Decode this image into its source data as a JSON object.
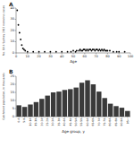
{
  "chart_data": [
    {
      "type": "scatter",
      "title": "A",
      "x": [
        1,
        2,
        3,
        4,
        5,
        6,
        7,
        8,
        10,
        15,
        20,
        25,
        30,
        35,
        40,
        45,
        48,
        50,
        52,
        53,
        55,
        56,
        57,
        58,
        59,
        60,
        61,
        62,
        63,
        64,
        65,
        66,
        67,
        68,
        69,
        70,
        71,
        72,
        73,
        74,
        75,
        76,
        77,
        78,
        79,
        80,
        82,
        85,
        88,
        90,
        95
      ],
      "values": [
        38,
        25,
        18,
        12,
        7,
        4,
        3,
        2,
        1,
        1,
        1,
        1,
        1,
        1,
        1,
        1,
        1,
        2,
        1,
        2,
        2,
        3,
        2,
        2,
        3,
        3,
        2,
        3,
        2,
        3,
        3,
        2,
        3,
        3,
        2,
        3,
        3,
        2,
        3,
        2,
        3,
        2,
        3,
        2,
        2,
        2,
        2,
        1,
        1,
        1,
        1
      ],
      "color": "black",
      "xlabel": "Age",
      "ylabel": "No. GII.4 Sydney 2012 norovirus cases",
      "xlim": [
        0,
        100
      ],
      "ylim": [
        0,
        40
      ],
      "xticks": [
        0,
        10,
        20,
        30,
        40,
        50,
        60,
        70,
        80,
        90,
        100
      ],
      "yticks": [
        0,
        10,
        20,
        30,
        40
      ]
    },
    {
      "type": "bar",
      "title": "B",
      "categories": [
        "0-4",
        "5-9",
        "10-14",
        "15-19",
        "20-24",
        "25-29",
        "30-34",
        "35-39",
        "40-44",
        "45-49",
        "50-54",
        "55-59",
        "60-64",
        "65-69",
        "70-74",
        "75-79",
        "80-84",
        "85-89",
        "90-94",
        "95+"
      ],
      "values": [
        7.0,
        6.0,
        7.5,
        9.0,
        11.0,
        13.0,
        15.0,
        15.5,
        16.5,
        17.0,
        18.0,
        21.0,
        22.5,
        20.0,
        15.5,
        11.5,
        8.0,
        6.5,
        5.5,
        3.5
      ],
      "color": "#3a3a3a",
      "xlabel": "Age group, y",
      "ylabel": "Catchment population, in thousands",
      "ylim": [
        0,
        25
      ],
      "yticks": [
        0,
        5,
        10,
        15,
        20,
        25
      ]
    }
  ]
}
